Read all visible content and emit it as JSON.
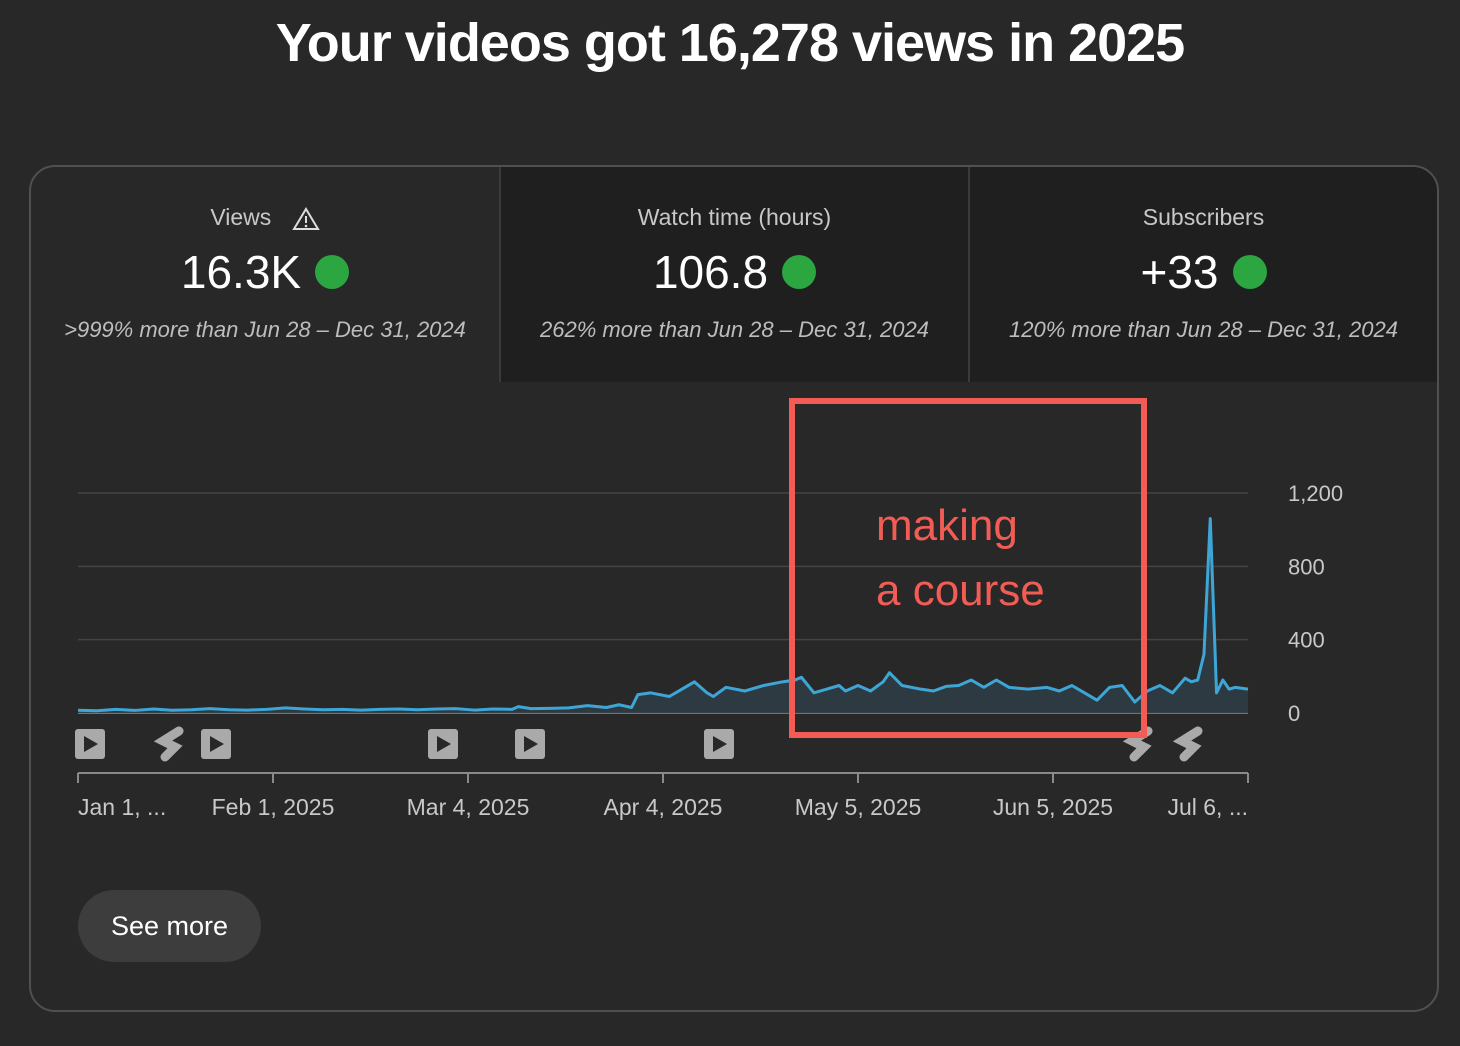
{
  "header": {
    "title": "Your videos got 16,278 views in 2025"
  },
  "metrics": [
    {
      "label": "Views",
      "value": "16.3K",
      "comparison": ">999% more than Jun 28 – Dec 31, 2024"
    },
    {
      "label": "Watch time (hours)",
      "value": "106.8",
      "comparison": "262% more than Jun 28 – Dec 31, 2024"
    },
    {
      "label": "Subscribers",
      "value": "+33",
      "comparison": "120% more than Jun 28 – Dec 31, 2024"
    }
  ],
  "chart_data": {
    "type": "line",
    "color": "#3ea6d6",
    "grid": true,
    "x": [
      "2025-01-01",
      "2025-01-04",
      "2025-01-07",
      "2025-01-10",
      "2025-01-13",
      "2025-01-16",
      "2025-01-19",
      "2025-01-22",
      "2025-01-25",
      "2025-01-28",
      "2025-01-31",
      "2025-02-03",
      "2025-02-06",
      "2025-02-09",
      "2025-02-12",
      "2025-02-15",
      "2025-02-18",
      "2025-02-21",
      "2025-02-24",
      "2025-02-27",
      "2025-03-02",
      "2025-03-05",
      "2025-03-08",
      "2025-03-11",
      "2025-03-12",
      "2025-03-14",
      "2025-03-17",
      "2025-03-20",
      "2025-03-23",
      "2025-03-26",
      "2025-03-28",
      "2025-03-30",
      "2025-03-31",
      "2025-04-02",
      "2025-04-05",
      "2025-04-07",
      "2025-04-09",
      "2025-04-11",
      "2025-04-12",
      "2025-04-14",
      "2025-04-17",
      "2025-04-20",
      "2025-04-23",
      "2025-04-25",
      "2025-04-26",
      "2025-04-28",
      "2025-04-30",
      "2025-05-02",
      "2025-05-03",
      "2025-05-05",
      "2025-05-07",
      "2025-05-09",
      "2025-05-10",
      "2025-05-12",
      "2025-05-15",
      "2025-05-17",
      "2025-05-19",
      "2025-05-21",
      "2025-05-23",
      "2025-05-25",
      "2025-05-27",
      "2025-05-29",
      "2025-06-01",
      "2025-06-04",
      "2025-06-06",
      "2025-06-08",
      "2025-06-10",
      "2025-06-12",
      "2025-06-14",
      "2025-06-16",
      "2025-06-18",
      "2025-06-20",
      "2025-06-22",
      "2025-06-24",
      "2025-06-26",
      "2025-06-27",
      "2025-06-28",
      "2025-06-29",
      "2025-06-30",
      "2025-07-01",
      "2025-07-02",
      "2025-07-03",
      "2025-07-04",
      "2025-07-06"
    ],
    "values": [
      15,
      12,
      20,
      14,
      22,
      15,
      18,
      24,
      18,
      16,
      20,
      28,
      22,
      18,
      20,
      16,
      20,
      22,
      18,
      22,
      24,
      16,
      22,
      20,
      35,
      24,
      25,
      28,
      40,
      30,
      45,
      30,
      100,
      110,
      90,
      130,
      170,
      110,
      90,
      140,
      120,
      150,
      170,
      180,
      195,
      110,
      130,
      150,
      120,
      150,
      120,
      170,
      220,
      150,
      130,
      120,
      145,
      150,
      180,
      140,
      180,
      140,
      130,
      140,
      120,
      150,
      110,
      70,
      140,
      150,
      60,
      120,
      150,
      110,
      190,
      170,
      180,
      320,
      1060,
      110,
      180,
      130,
      140,
      130
    ],
    "xlim": [
      "2025-01-01",
      "2025-07-06"
    ],
    "xticks": [
      {
        "value": "2025-01-01",
        "label": "Jan 1, ..."
      },
      {
        "value": "2025-02-01",
        "label": "Feb 1, 2025"
      },
      {
        "value": "2025-03-04",
        "label": "Mar 4, 2025"
      },
      {
        "value": "2025-04-04",
        "label": "Apr 4, 2025"
      },
      {
        "value": "2025-05-05",
        "label": "May 5, 2025"
      },
      {
        "value": "2025-06-05",
        "label": "Jun 5, 2025"
      },
      {
        "value": "2025-07-06",
        "label": "Jul 6, ..."
      }
    ],
    "ylim": [
      0,
      1200
    ],
    "yticks": [
      0,
      400,
      800,
      {
        "value": 1200,
        "label": "1,200"
      }
    ],
    "annotation": [
      "making",
      "a course"
    ]
  },
  "button": "See more"
}
